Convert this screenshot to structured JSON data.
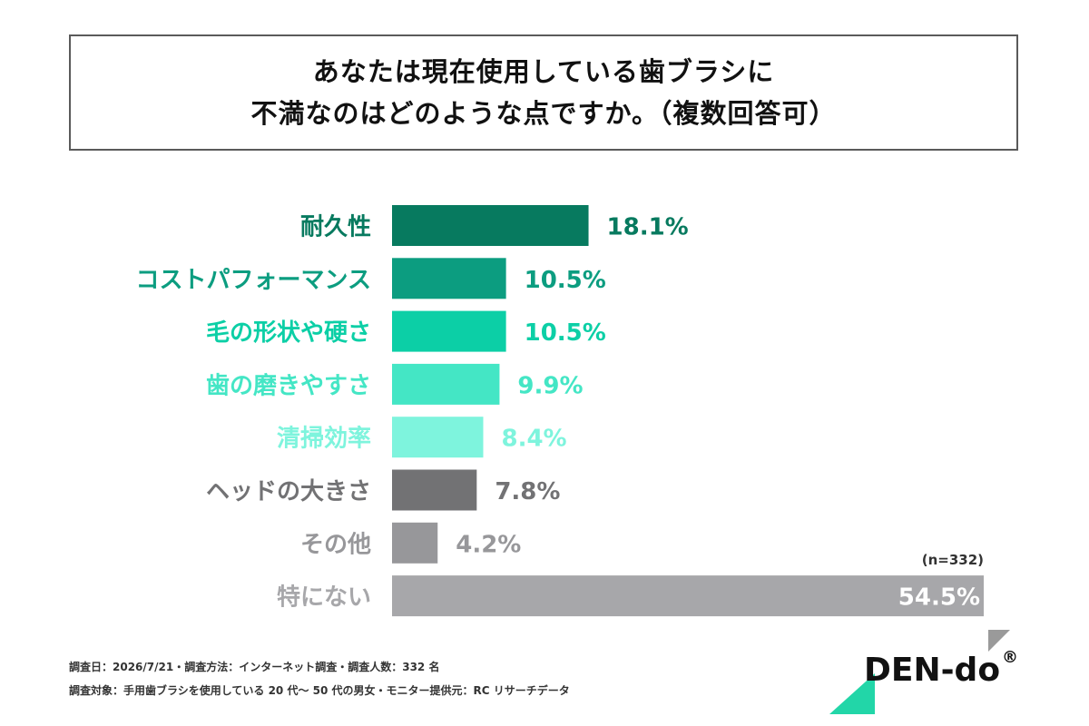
{
  "title": {
    "line1": "あなたは現在使用している歯ブラシに",
    "line2": "不満なのはどのような点ですか。（複数回答可）"
  },
  "chart_data": {
    "type": "bar",
    "orientation": "horizontal",
    "categories": [
      "耐久性",
      "コストパフォーマンス",
      "毛の形状や硬さ",
      "歯の磨きやすさ",
      "清掃効率",
      "ヘッドの大きさ",
      "その他",
      "特にない"
    ],
    "values": [
      18.1,
      10.5,
      10.5,
      9.9,
      8.4,
      7.8,
      4.2,
      54.5
    ],
    "value_labels": [
      "18.1%",
      "10.5%",
      "10.5%",
      "9.9%",
      "8.4%",
      "7.8%",
      "4.2%",
      "54.5%"
    ],
    "unit": "%",
    "colors": [
      "#077a5f",
      "#0c9d80",
      "#0ccfa6",
      "#44e6c5",
      "#7ef4dd",
      "#727274",
      "#97979a",
      "#a7a7aa"
    ],
    "sample_note": "(n=332)",
    "xlim": [
      0,
      54.5
    ],
    "grid": false,
    "legend": "none"
  },
  "footer": {
    "line1": "調査日：2026/7/21・調査方法：インターネット調査・調査人数：332 名",
    "line2": "調査対象：手用歯ブラシを使用している 20 代〜 50 代の男女・モニター提供元：RC リサーチデータ"
  },
  "logo": {
    "text": "DEN-do",
    "reg": "®",
    "accent_color": "#22d6a8",
    "corner_color": "#9a9a9a"
  }
}
